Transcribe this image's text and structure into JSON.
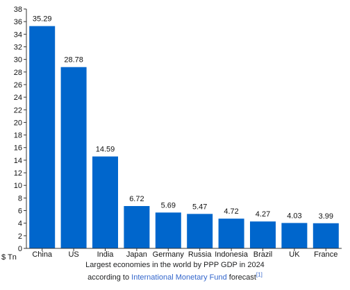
{
  "chart_data": {
    "type": "bar",
    "categories": [
      "China",
      "US",
      "India",
      "Japan",
      "Germany",
      "Russia",
      "Indonesia",
      "Brazil",
      "UK",
      "France"
    ],
    "values": [
      35.29,
      28.78,
      14.59,
      6.72,
      5.69,
      5.47,
      4.72,
      4.27,
      4.03,
      3.99
    ],
    "data_labels": [
      "35.29",
      "28.78",
      "14.59",
      "6.72",
      "5.69",
      "5.47",
      "4.72",
      "4.27",
      "4.03",
      "3.99"
    ],
    "ylim": [
      0,
      38
    ],
    "ytick_values": [
      0,
      2,
      4,
      6,
      8,
      10,
      12,
      14,
      16,
      18,
      20,
      22,
      24,
      26,
      28,
      30,
      32,
      34,
      36,
      38
    ],
    "y_unit_label": "$ Tn",
    "grid": false,
    "bar_color": "#0066cc"
  },
  "caption": {
    "line1": "Largest economies in the world by PPP GDP in 2024",
    "line2_prefix": "according to ",
    "line2_link": "International Monetary Fund",
    "line2_suffix": " forecast",
    "footnote": "[1]",
    "link_color": "#3366cc"
  }
}
